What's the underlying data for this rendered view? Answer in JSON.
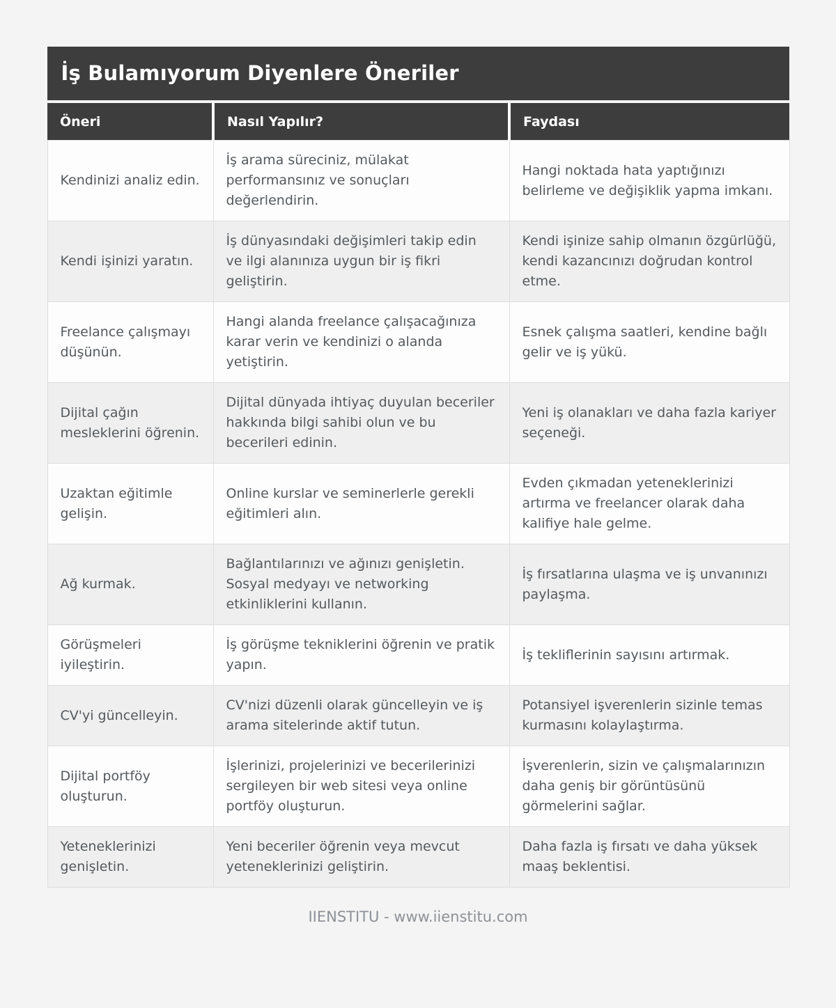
{
  "page": {
    "title": "İş Bulamıyorum Diyenlere Öneriler"
  },
  "table": {
    "headers": {
      "oneri": "Öneri",
      "nasil": "Nasıl Yapılır?",
      "faydasi": "Faydası"
    },
    "rows": [
      {
        "oneri": "Kendinizi analiz edin.",
        "nasil": "İş arama süreciniz, mülakat performansınız ve sonuçları değerlendirin.",
        "faydasi": "Hangi noktada hata yaptığınızı belirleme ve değişiklik yapma imkanı."
      },
      {
        "oneri": "Kendi işinizi yaratın.",
        "nasil": "İş dünyasındaki değişimleri takip edin ve ilgi alanınıza uygun bir iş fikri geliştirin.",
        "faydasi": "Kendi işinize sahip olmanın özgürlüğü, kendi kazancınızı doğrudan kontrol etme."
      },
      {
        "oneri": "Freelance çalışmayı düşünün.",
        "nasil": "Hangi alanda freelance çalışacağınıza karar verin ve kendinizi o alanda yetiştirin.",
        "faydasi": "Esnek çalışma saatleri, kendine bağlı gelir ve iş yükü."
      },
      {
        "oneri": "Dijital çağın mesleklerini öğrenin.",
        "nasil": "Dijital dünyada ihtiyaç duyulan beceriler hakkında bilgi sahibi olun ve bu becerileri edinin.",
        "faydasi": "Yeni iş olanakları ve daha fazla kariyer seçeneği."
      },
      {
        "oneri": "Uzaktan eğitimle gelişin.",
        "nasil": "Online kurslar ve seminerlerle gerekli eğitimleri alın.",
        "faydasi": "Evden çıkmadan yeteneklerinizi artırma ve freelancer olarak daha kalifiye hale gelme."
      },
      {
        "oneri": "Ağ kurmak.",
        "nasil": "Bağlantılarınızı ve ağınızı genişletin. Sosyal medyayı ve networking etkinliklerini kullanın.",
        "faydasi": "İş fırsatlarına ulaşma ve iş unvanınızı paylaşma."
      },
      {
        "oneri": "Görüşmeleri iyileştirin.",
        "nasil": "İş görüşme tekniklerini öğrenin ve pratik yapın.",
        "faydasi": "İş tekliflerinin sayısını artırmak."
      },
      {
        "oneri": "CV'yi güncelleyin.",
        "nasil": "CV'nizi düzenli olarak güncelleyin ve iş arama sitelerinde aktif tutun.",
        "faydasi": "Potansiyel işverenlerin sizinle temas kurmasını kolaylaştırma."
      },
      {
        "oneri": "Dijital portföy oluşturun.",
        "nasil": "İşlerinizi, projelerinizi ve becerilerinizi sergileyen bir web sitesi veya online portföy oluşturun.",
        "faydasi": "İşverenlerin, sizin ve çalışmalarınızın daha geniş bir görüntüsünü görmelerini sağlar."
      },
      {
        "oneri": "Yeteneklerinizi genişletin.",
        "nasil": "Yeni beceriler öğrenin veya mevcut yeteneklerinizi geliştirin.",
        "faydasi": "Daha fazla iş fırsatı ve daha yüksek maaş beklentisi."
      }
    ]
  },
  "footer": {
    "text": "IIENSTITU - www.iienstitu.com"
  },
  "colors": {
    "header_bg": "#3d3d3d",
    "header_text": "#ffffff",
    "row_even_bg": "#efefef",
    "row_odd_bg": "#fdfdfd",
    "body_text": "#54595d",
    "border": "#dddddd",
    "page_bg": "#f4f4f4",
    "footer_text": "#8d9196"
  }
}
